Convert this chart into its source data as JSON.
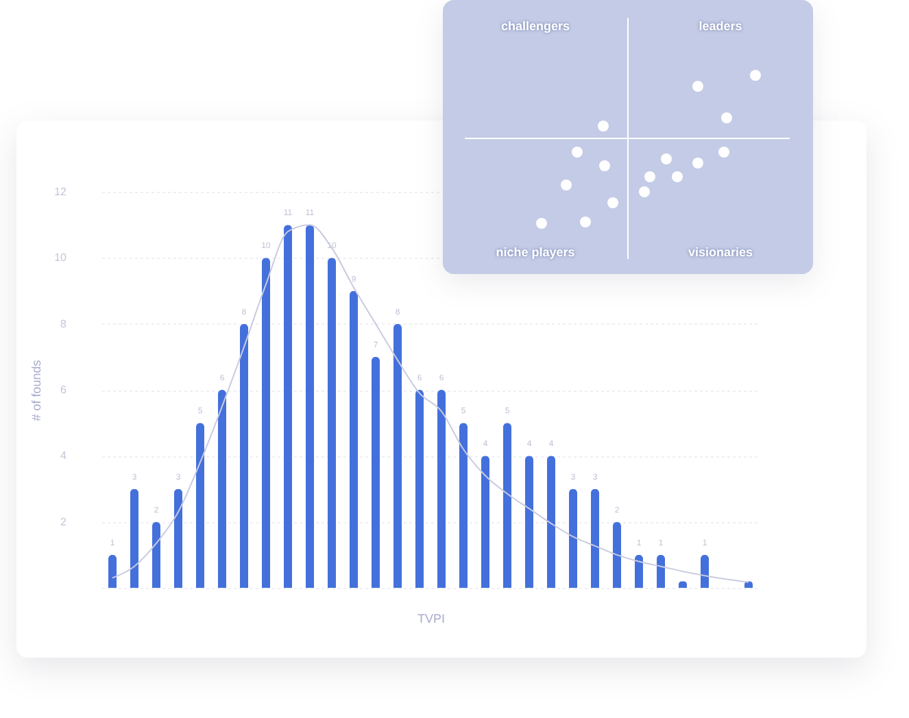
{
  "chart_data": [
    {
      "type": "bar",
      "xlabel": "TVPI",
      "ylabel": "# of founds",
      "categories": [
        null,
        null,
        null,
        null,
        null,
        null,
        null,
        null,
        null,
        null,
        null,
        null,
        null,
        null,
        null,
        null,
        null,
        null,
        null,
        null,
        null,
        null,
        null,
        null,
        null,
        null,
        null,
        null,
        null,
        null
      ],
      "series": [
        {
          "type": "bar",
          "color": "#4470dc",
          "values": [
            1,
            3,
            2,
            3,
            5,
            6,
            8,
            10,
            11,
            11,
            10,
            9,
            7,
            8,
            6,
            6,
            5,
            4,
            5,
            4,
            4,
            3,
            3,
            2,
            1,
            1,
            0.2,
            1,
            null,
            0.2
          ],
          "value_labels": [
            "1",
            "3",
            "2",
            "3",
            "5",
            "6",
            "8",
            "10",
            "11",
            "11",
            "10",
            "9",
            "7",
            "8",
            "6",
            "6",
            "5",
            "4",
            "5",
            "4",
            "4",
            "3",
            "3",
            "2",
            "1",
            "1",
            null,
            "1",
            null,
            null
          ]
        },
        {
          "type": "line",
          "color": "#c9cbe0",
          "values": [
            0.3,
            0.65,
            1.35,
            2.3,
            3.8,
            5.5,
            7.3,
            9.2,
            10.8,
            11,
            10.3,
            9.1,
            8,
            6.9,
            5.9,
            5.35,
            4.2,
            3.4,
            2.85,
            2.4,
            1.95,
            1.55,
            1.27,
            1,
            0.8,
            0.65,
            0.5,
            0.37,
            0.26,
            0.17
          ]
        }
      ],
      "ylim": [
        0,
        12
      ],
      "yticks": [
        {
          "value": 0,
          "label": null
        },
        2,
        4,
        6,
        8,
        10,
        12
      ],
      "grid": "y"
    },
    {
      "type": "other",
      "annotations": [
        "challengers",
        "leaders",
        "niche players",
        "visionaries"
      ]
    }
  ]
}
